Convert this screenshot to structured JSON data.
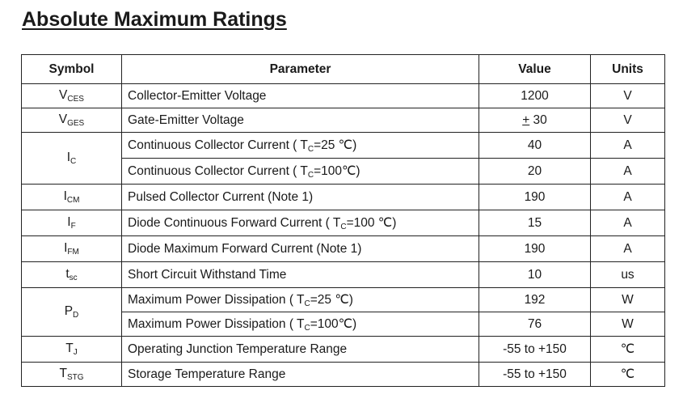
{
  "title": "Absolute Maximum Ratings",
  "headers": {
    "symbol": "Symbol",
    "parameter": "Parameter",
    "value": "Value",
    "units": "Units"
  },
  "rows": [
    {
      "sym_main": "V",
      "sym_sub": "CES",
      "parameter": "Collector-Emitter Voltage",
      "value": "1200",
      "unit": "V"
    },
    {
      "sym_main": "V",
      "sym_sub": "GES",
      "parameter": "Gate-Emitter Voltage",
      "value_pm": "+",
      "value": " 30",
      "unit": "V"
    },
    {
      "sym_main": "I",
      "sym_sub": "C",
      "param_a": "Continuous Collector Current ( T",
      "param_sub": "C",
      "param_b": "=25 ℃)",
      "value": "40",
      "unit": "A"
    },
    {
      "param_a": "Continuous Collector Current  ( T",
      "param_sub": "C",
      "param_b": "=100℃)",
      "value": "20",
      "unit": "A"
    },
    {
      "sym_main": "I",
      "sym_sub": "CM",
      "parameter": "Pulsed Collector Current (Note 1)",
      "value": "190",
      "unit": "A"
    },
    {
      "sym_main": "I",
      "sym_sub": "F",
      "param_a": "Diode Continuous Forward Current ( T",
      "param_sub": "C",
      "param_b": "=100 ℃)",
      "value": "15",
      "unit": "A"
    },
    {
      "sym_main": "I",
      "sym_sub": "FM",
      "parameter": "Diode Maximum Forward Current (Note 1)",
      "value": "190",
      "unit": "A"
    },
    {
      "sym_main": "t",
      "sym_sub": "sc",
      "parameter": "Short Circuit Withstand Time",
      "value": "10",
      "unit": "us"
    },
    {
      "sym_main": "P",
      "sym_sub": "D",
      "param_a": "Maximum Power Dissipation ( T",
      "param_sub": "C",
      "param_b": "=25 ℃)",
      "value": "192",
      "unit": "W"
    },
    {
      "param_a": "Maximum Power Dissipation ( T",
      "param_sub": "C",
      "param_b": "=100℃)",
      "value": "76",
      "unit": "W"
    },
    {
      "sym_main": "T",
      "sym_sub": "J",
      "parameter": "Operating Junction Temperature Range",
      "value": "-55 to +150",
      "unit": "℃"
    },
    {
      "sym_main": "T",
      "sym_sub": "STG",
      "parameter": "Storage Temperature Range",
      "value": "-55 to +150",
      "unit": "℃"
    }
  ]
}
